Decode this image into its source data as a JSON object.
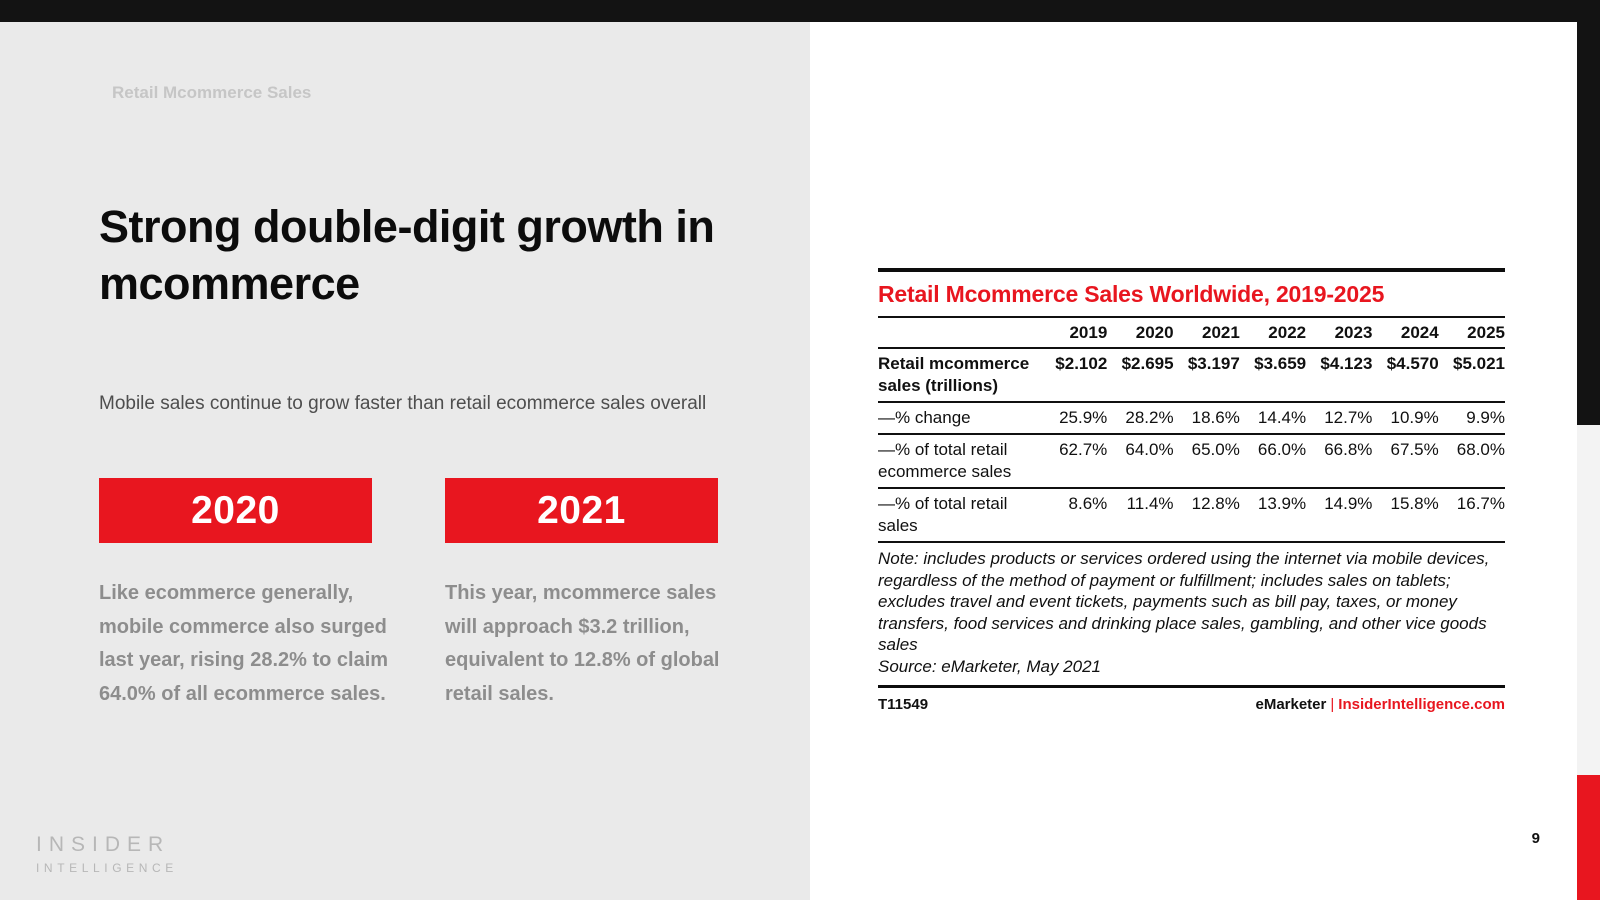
{
  "slide": {
    "eyebrow": "Retail Mcommerce Sales",
    "title": "Strong double-digit growth in mcommerce",
    "subtitle": "Mobile sales continue to grow faster than retail ecommerce sales overall",
    "callouts": [
      {
        "year": "2020",
        "text": "Like ecommerce generally, mobile commerce also surged last year, rising 28.2% to claim 64.0% of all ecommerce sales."
      },
      {
        "year": "2021",
        "text": "This year, mcommerce sales will approach $3.2 trillion, equivalent to 12.8% of global retail sales."
      }
    ],
    "logo": {
      "line1": "INSIDER",
      "line2": "INTELLIGENCE"
    },
    "page_number": "9"
  },
  "table": {
    "title": "Retail Mcommerce Sales Worldwide, 2019-2025",
    "years": [
      "2019",
      "2020",
      "2021",
      "2022",
      "2023",
      "2024",
      "2025"
    ],
    "rows": [
      {
        "label": "Retail mcommerce sales (trillions)",
        "bold": true,
        "values": [
          "$2.102",
          "$2.695",
          "$3.197",
          "$3.659",
          "$4.123",
          "$4.570",
          "$5.021"
        ]
      },
      {
        "label": "—% change",
        "bold": false,
        "values": [
          "25.9%",
          "28.2%",
          "18.6%",
          "14.4%",
          "12.7%",
          "10.9%",
          "9.9%"
        ]
      },
      {
        "label": "—% of total retail ecommerce sales",
        "bold": false,
        "values": [
          "62.7%",
          "64.0%",
          "65.0%",
          "66.0%",
          "66.8%",
          "67.5%",
          "68.0%"
        ]
      },
      {
        "label": "—% of total retail sales",
        "bold": false,
        "values": [
          "8.6%",
          "11.4%",
          "12.8%",
          "13.9%",
          "14.9%",
          "15.8%",
          "16.7%"
        ]
      }
    ],
    "note": "Note: includes products or services ordered using the internet via mobile devices, regardless of the method of payment or fulfillment; includes sales on tablets; excludes travel and event tickets, payments such as bill pay, taxes, or money transfers, food services and drinking place sales, gambling, and other vice goods sales",
    "source": "Source: eMarketer, May 2021",
    "footer": {
      "id": "T11549",
      "brand": "eMarketer",
      "separator": "|",
      "site": "InsiderIntelligence.com"
    }
  },
  "colors": {
    "accent_red": "#e8161f",
    "top_bar_black": "#131313",
    "left_panel_gray": "#eaeaea",
    "edge_gray": "#f3f3f3",
    "body_gray_text": "#8d8d8d"
  },
  "chart_data": {
    "type": "table",
    "title": "Retail Mcommerce Sales Worldwide, 2019-2025",
    "categories": [
      "2019",
      "2020",
      "2021",
      "2022",
      "2023",
      "2024",
      "2025"
    ],
    "series": [
      {
        "name": "Retail mcommerce sales (trillions)",
        "unit": "$ trillions",
        "values": [
          2.102,
          2.695,
          3.197,
          3.659,
          4.123,
          4.57,
          5.021
        ]
      },
      {
        "name": "% change",
        "unit": "%",
        "values": [
          25.9,
          28.2,
          18.6,
          14.4,
          12.7,
          10.9,
          9.9
        ]
      },
      {
        "name": "% of total retail ecommerce sales",
        "unit": "%",
        "values": [
          62.7,
          64.0,
          65.0,
          66.0,
          66.8,
          67.5,
          68.0
        ]
      },
      {
        "name": "% of total retail sales",
        "unit": "%",
        "values": [
          8.6,
          11.4,
          12.8,
          13.9,
          14.9,
          15.8,
          16.7
        ]
      }
    ],
    "note": "includes products or services ordered using the internet via mobile devices, regardless of the method of payment or fulfillment; includes sales on tablets; excludes travel and event tickets, payments such as bill pay, taxes, or money transfers, food services and drinking place sales, gambling, and other vice goods sales",
    "source": "eMarketer, May 2021"
  }
}
